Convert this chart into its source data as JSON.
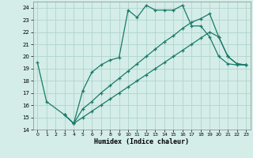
{
  "xlabel": "Humidex (Indice chaleur)",
  "background_color": "#d4ede8",
  "grid_color": "#afd4cb",
  "line_color": "#1a7a6a",
  "xlim": [
    -0.5,
    23.5
  ],
  "ylim": [
    14,
    24.5
  ],
  "xticks": [
    0,
    1,
    2,
    3,
    4,
    5,
    6,
    7,
    8,
    9,
    10,
    11,
    12,
    13,
    14,
    15,
    16,
    17,
    18,
    19,
    20,
    21,
    22,
    23
  ],
  "yticks": [
    14,
    15,
    16,
    17,
    18,
    19,
    20,
    21,
    22,
    23,
    24
  ],
  "line1_x": [
    0,
    1,
    3,
    4,
    5,
    6,
    7,
    8,
    9,
    10,
    11,
    12,
    13,
    14,
    15,
    16,
    17,
    18,
    19,
    20,
    21,
    22,
    23
  ],
  "line1_y": [
    19.5,
    16.3,
    15.2,
    14.5,
    17.2,
    18.7,
    19.3,
    19.7,
    19.9,
    23.8,
    23.2,
    24.2,
    23.8,
    23.8,
    23.8,
    24.2,
    22.5,
    22.5,
    21.6,
    20.0,
    19.4,
    19.3,
    19.3
  ],
  "line2_x": [
    3,
    4,
    5,
    6,
    7,
    8,
    9,
    10,
    11,
    12,
    13,
    14,
    15,
    16,
    17,
    18,
    19,
    20,
    21,
    22,
    23
  ],
  "line2_y": [
    15.2,
    14.5,
    15.7,
    16.3,
    17.0,
    17.6,
    18.2,
    18.8,
    19.4,
    20.0,
    20.6,
    21.2,
    21.7,
    22.3,
    22.8,
    23.1,
    23.5,
    21.6,
    20.0,
    19.4,
    19.3
  ],
  "line3_x": [
    3,
    4,
    5,
    6,
    7,
    8,
    9,
    10,
    11,
    12,
    13,
    14,
    15,
    16,
    17,
    18,
    19,
    20,
    21,
    22,
    23
  ],
  "line3_y": [
    15.2,
    14.5,
    15.0,
    15.5,
    16.0,
    16.5,
    17.0,
    17.5,
    18.0,
    18.5,
    19.0,
    19.5,
    20.0,
    20.5,
    21.0,
    21.5,
    22.0,
    21.6,
    20.0,
    19.4,
    19.3
  ]
}
